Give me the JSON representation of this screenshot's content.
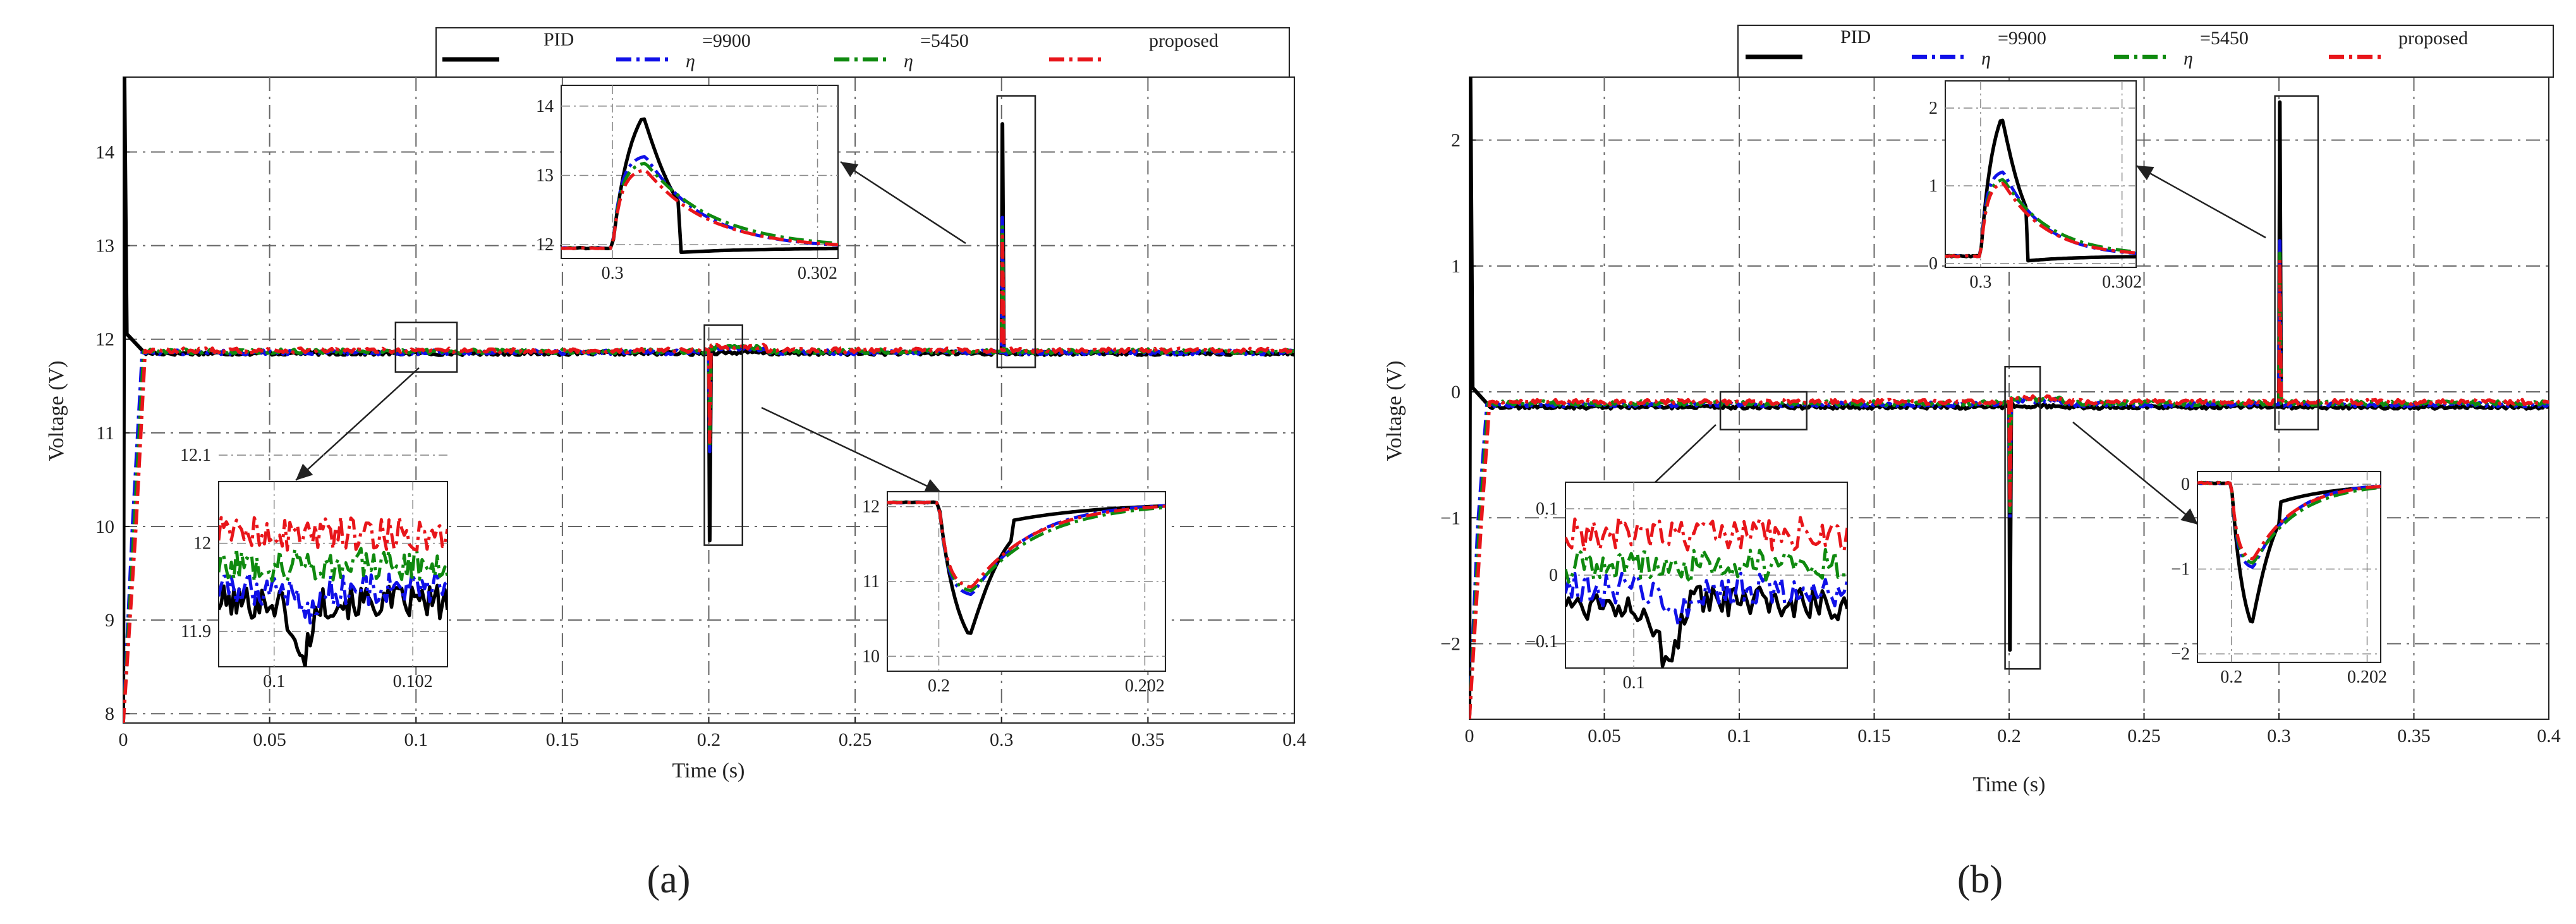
{
  "figure": {
    "caption_a": "(a)",
    "caption_b": "(b)"
  },
  "legend": {
    "pid": "PID",
    "eta9900_sym": "η",
    "eta9900_sup": "=9900",
    "eta5450_sym": "η",
    "eta5450_sup": "=5450",
    "proposed": "proposed"
  },
  "colors": {
    "pid": "#000000",
    "eta9900": "#1010e8",
    "eta5450": "#0f8a0f",
    "proposed": "#e8151a"
  },
  "chart_data": [
    {
      "id": "a",
      "type": "line",
      "xlabel": "Time (s)",
      "ylabel": "Voltage (V)",
      "xlim": [
        0,
        0.4
      ],
      "ylim": [
        7.9,
        14.8
      ],
      "xticks": [
        0,
        0.05,
        0.1,
        0.15,
        0.2,
        0.25,
        0.3,
        0.35,
        0.4
      ],
      "xtick_labels": [
        "0",
        "0.05",
        "0.1",
        "0.15",
        "0.2",
        "0.25",
        "0.3",
        "0.35",
        "0.4"
      ],
      "yticks": [
        8,
        9,
        10,
        11,
        12,
        13,
        14
      ],
      "ytick_labels": [
        "8",
        "9",
        "10",
        "11",
        "12",
        "13",
        "14"
      ],
      "grid": true,
      "steady": [
        11.85,
        11.86,
        11.87,
        11.88
      ],
      "initial_peak": 14.8,
      "dip_time": 0.2,
      "dip_min": [
        9.85,
        10.8,
        10.85,
        10.9
      ],
      "spike_time": 0.3,
      "spike_peak": [
        14.3,
        13.3,
        13.2,
        13.1
      ],
      "series": [
        "PID",
        "η=9900",
        "η=5450",
        "proposed"
      ],
      "insets": [
        {
          "name": "inset-steady",
          "xlim": [
            0.0992,
            0.1025
          ],
          "ylim": [
            11.86,
            12.07
          ],
          "xticks": [
            0.1,
            0.102
          ],
          "xtick_labels": [
            "0.1",
            "0.102"
          ],
          "yticks": [
            11.9,
            12.0,
            12.1
          ],
          "ytick_labels": [
            "11.9",
            "12",
            "12.1"
          ],
          "box": [
            0.093,
            0.114,
            11.65,
            12.18
          ],
          "feature": "steady"
        },
        {
          "name": "inset-dip",
          "xlim": [
            0.1995,
            0.2022
          ],
          "ylim": [
            9.8,
            12.2
          ],
          "xticks": [
            0.2,
            0.202
          ],
          "xtick_labels": [
            "0.2",
            "0.202"
          ],
          "yticks": [
            10,
            11,
            12
          ],
          "ytick_labels": [
            "10",
            "11",
            "12"
          ],
          "box": [
            0.1985,
            0.2115,
            9.8,
            12.15
          ],
          "feature": "dip"
        },
        {
          "name": "inset-spike",
          "xlim": [
            0.2995,
            0.3022
          ],
          "ylim": [
            11.8,
            14.3
          ],
          "xticks": [
            0.3,
            0.302
          ],
          "xtick_labels": [
            "0.3",
            "0.302"
          ],
          "yticks": [
            12,
            13,
            14
          ],
          "ytick_labels": [
            "12",
            "13",
            "14"
          ],
          "box": [
            0.2985,
            0.3115,
            11.7,
            14.6
          ],
          "feature": "spike"
        }
      ]
    },
    {
      "id": "b",
      "type": "line",
      "xlabel": "Time (s)",
      "ylabel": "Voltage (V)",
      "xlim": [
        0,
        0.4
      ],
      "ylim": [
        -2.6,
        2.5
      ],
      "xticks": [
        0,
        0.05,
        0.1,
        0.15,
        0.2,
        0.25,
        0.3,
        0.35,
        0.4
      ],
      "xtick_labels": [
        "0",
        "0.05",
        "0.1",
        "0.15",
        "0.2",
        "0.25",
        "0.3",
        "0.35",
        "0.4"
      ],
      "yticks": [
        -2,
        -1,
        0,
        1,
        2
      ],
      "ytick_labels": [
        "−2",
        "−1",
        "0",
        "1",
        "2"
      ],
      "grid": true,
      "steady": [
        -0.12,
        -0.1,
        -0.09,
        -0.08
      ],
      "initial_peak": 2.5,
      "dip_time": 0.2,
      "dip_min": [
        -2.05,
        -1.0,
        -0.95,
        -0.9
      ],
      "spike_time": 0.3,
      "spike_peak": [
        2.3,
        1.2,
        1.1,
        1.05
      ],
      "series": [
        "PID",
        "η=9900",
        "η=5450",
        "proposed"
      ],
      "insets": [
        {
          "name": "inset-steady",
          "xlim": [
            0.0992,
            0.1025
          ],
          "ylim": [
            -0.14,
            0.14
          ],
          "xticks": [
            0.1
          ],
          "xtick_labels": [
            "0.1"
          ],
          "yticks": [
            -0.1,
            0,
            0.1
          ],
          "ytick_labels": [
            "−0.1",
            "0",
            "0.1"
          ],
          "box": [
            0.093,
            0.125,
            -0.3,
            0.0
          ],
          "feature": "steady"
        },
        {
          "name": "inset-dip",
          "xlim": [
            0.1995,
            0.2022
          ],
          "ylim": [
            -2.1,
            0.15
          ],
          "xticks": [
            0.2,
            0.202
          ],
          "xtick_labels": [
            "0.2",
            "0.202"
          ],
          "yticks": [
            -2,
            -1,
            0
          ],
          "ytick_labels": [
            "−2",
            "−1",
            "0"
          ],
          "box": [
            0.1985,
            0.2115,
            -2.2,
            0.2
          ],
          "feature": "dip"
        },
        {
          "name": "inset-spike",
          "xlim": [
            0.2995,
            0.3022
          ],
          "ylim": [
            -0.05,
            2.35
          ],
          "xticks": [
            0.3,
            0.302
          ],
          "xtick_labels": [
            "0.3",
            "0.302"
          ],
          "yticks": [
            0,
            1,
            2
          ],
          "ytick_labels": [
            "0",
            "1",
            "2"
          ],
          "box": [
            0.2985,
            0.3145,
            -0.3,
            2.35
          ],
          "feature": "spike"
        }
      ]
    }
  ]
}
